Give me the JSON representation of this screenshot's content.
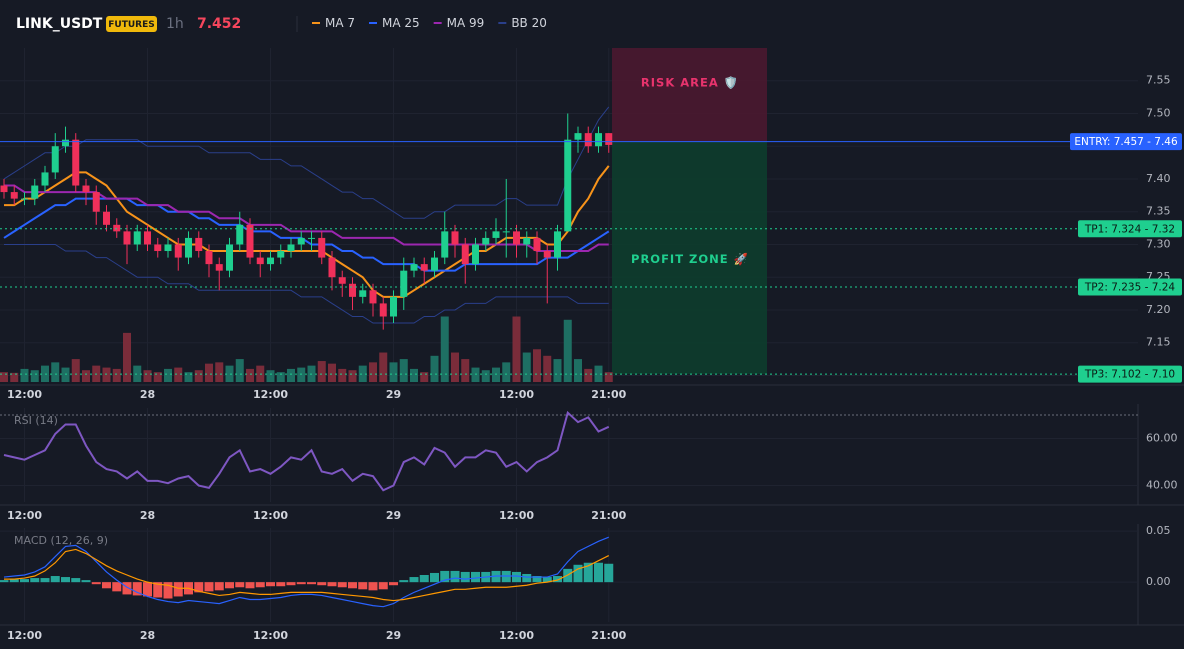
{
  "header": {
    "symbol": "LINK_USDT",
    "badge": "FUTURES",
    "interval": "1h",
    "price": 7.452
  },
  "chart_data": [
    {
      "type": "candlestick",
      "ylim": [
        7.09,
        7.6
      ],
      "yticks": [
        7.55,
        {
          "value": 7.5,
          "label": "7.50"
        },
        7.45,
        {
          "value": 7.4,
          "label": "7.40"
        },
        7.35,
        {
          "value": 7.3,
          "label": "7.30"
        },
        7.25,
        {
          "value": 7.2,
          "label": "7.20"
        },
        7.15,
        {
          "value": 7.1,
          "label": "7.10"
        }
      ],
      "xticks": [
        {
          "value": 2,
          "label": "12:00"
        },
        {
          "value": 14,
          "label": "28"
        },
        {
          "value": 26,
          "label": "12:00"
        },
        {
          "value": 38,
          "label": "29"
        },
        {
          "value": 50,
          "label": "12:00"
        },
        {
          "value": 59,
          "label": "21:00"
        }
      ],
      "grid": true,
      "up_color": "#1fcf8f",
      "down_color": "#f0305a",
      "open": [
        7.39,
        7.38,
        7.37,
        7.37,
        7.39,
        7.41,
        7.45,
        7.46,
        7.39,
        7.38,
        7.35,
        7.33,
        7.32,
        7.3,
        7.32,
        7.3,
        7.29,
        7.3,
        7.28,
        7.31,
        7.29,
        7.27,
        7.26,
        7.3,
        7.33,
        7.28,
        7.27,
        7.28,
        7.29,
        7.3,
        7.31,
        7.31,
        7.28,
        7.25,
        7.24,
        7.22,
        7.23,
        7.21,
        7.19,
        7.22,
        7.26,
        7.27,
        7.26,
        7.28,
        7.32,
        7.3,
        7.27,
        7.3,
        7.31,
        7.32,
        7.32,
        7.3,
        7.31,
        7.29,
        7.28,
        7.32,
        7.46,
        7.47,
        7.45,
        7.47
      ],
      "high": [
        7.4,
        7.39,
        7.38,
        7.4,
        7.42,
        7.47,
        7.48,
        7.47,
        7.4,
        7.39,
        7.36,
        7.34,
        7.33,
        7.33,
        7.33,
        7.31,
        7.31,
        7.31,
        7.32,
        7.32,
        7.3,
        7.28,
        7.31,
        7.35,
        7.34,
        7.29,
        7.29,
        7.3,
        7.31,
        7.32,
        7.32,
        7.32,
        7.29,
        7.26,
        7.25,
        7.24,
        7.24,
        7.22,
        7.23,
        7.28,
        7.28,
        7.28,
        7.29,
        7.35,
        7.33,
        7.31,
        7.31,
        7.32,
        7.34,
        7.4,
        7.33,
        7.32,
        7.32,
        7.3,
        7.33,
        7.5,
        7.48,
        7.48,
        7.48,
        7.47
      ],
      "low": [
        7.37,
        7.36,
        7.36,
        7.36,
        7.38,
        7.4,
        7.44,
        7.38,
        7.36,
        7.33,
        7.32,
        7.31,
        7.27,
        7.29,
        7.29,
        7.28,
        7.28,
        7.26,
        7.27,
        7.28,
        7.25,
        7.23,
        7.25,
        7.29,
        7.27,
        7.25,
        7.26,
        7.27,
        7.28,
        7.29,
        7.29,
        7.27,
        7.23,
        7.22,
        7.2,
        7.21,
        7.19,
        7.17,
        7.18,
        7.2,
        7.25,
        7.24,
        7.25,
        7.27,
        7.28,
        7.24,
        7.26,
        7.29,
        7.3,
        7.28,
        7.28,
        7.28,
        7.27,
        7.21,
        7.26,
        7.32,
        7.44,
        7.44,
        7.44,
        7.44
      ],
      "close": [
        7.38,
        7.37,
        7.37,
        7.39,
        7.41,
        7.45,
        7.46,
        7.39,
        7.38,
        7.35,
        7.33,
        7.32,
        7.3,
        7.32,
        7.3,
        7.29,
        7.3,
        7.28,
        7.31,
        7.29,
        7.27,
        7.26,
        7.3,
        7.33,
        7.28,
        7.27,
        7.28,
        7.29,
        7.3,
        7.31,
        7.31,
        7.28,
        7.25,
        7.24,
        7.22,
        7.23,
        7.21,
        7.19,
        7.22,
        7.26,
        7.27,
        7.26,
        7.28,
        7.32,
        7.3,
        7.27,
        7.3,
        7.31,
        7.32,
        7.32,
        7.3,
        7.31,
        7.29,
        7.28,
        7.32,
        7.46,
        7.47,
        7.45,
        7.47,
        7.452
      ],
      "volume": [
        15,
        14,
        20,
        18,
        25,
        30,
        22,
        35,
        18,
        25,
        22,
        20,
        75,
        25,
        18,
        15,
        20,
        22,
        15,
        18,
        28,
        30,
        25,
        35,
        20,
        25,
        18,
        15,
        20,
        22,
        25,
        32,
        28,
        20,
        18,
        25,
        30,
        45,
        30,
        35,
        20,
        15,
        40,
        100,
        45,
        35,
        22,
        18,
        22,
        30,
        100,
        45,
        50,
        40,
        35,
        95,
        35,
        20,
        25,
        15
      ],
      "y2lim": [
        0,
        510
      ],
      "volume_up_color": "#1e6f63",
      "volume_down_color": "#7a2c3a",
      "series": [
        {
          "name": "MA 7",
          "color": "#f7931a",
          "values": [
            7.36,
            7.36,
            7.37,
            7.37,
            7.38,
            7.39,
            7.4,
            7.41,
            7.41,
            7.4,
            7.39,
            7.37,
            7.35,
            7.34,
            7.33,
            7.32,
            7.31,
            7.3,
            7.3,
            7.3,
            7.29,
            7.29,
            7.29,
            7.29,
            7.29,
            7.29,
            7.29,
            7.29,
            7.29,
            7.29,
            7.29,
            7.29,
            7.28,
            7.27,
            7.26,
            7.25,
            7.23,
            7.22,
            7.22,
            7.22,
            7.23,
            7.24,
            7.25,
            7.26,
            7.27,
            7.28,
            7.29,
            7.29,
            7.3,
            7.31,
            7.31,
            7.31,
            7.31,
            7.3,
            7.3,
            7.32,
            7.35,
            7.37,
            7.4,
            7.42
          ]
        },
        {
          "name": "MA 25",
          "color": "#2962ff",
          "values": [
            7.31,
            7.32,
            7.33,
            7.34,
            7.35,
            7.36,
            7.36,
            7.37,
            7.37,
            7.37,
            7.37,
            7.37,
            7.37,
            7.36,
            7.36,
            7.36,
            7.35,
            7.35,
            7.35,
            7.34,
            7.34,
            7.33,
            7.33,
            7.33,
            7.32,
            7.32,
            7.32,
            7.31,
            7.31,
            7.31,
            7.3,
            7.3,
            7.3,
            7.29,
            7.29,
            7.28,
            7.28,
            7.27,
            7.27,
            7.27,
            7.27,
            7.26,
            7.26,
            7.26,
            7.26,
            7.27,
            7.27,
            7.27,
            7.27,
            7.27,
            7.27,
            7.27,
            7.27,
            7.28,
            7.28,
            7.28,
            7.29,
            7.3,
            7.31,
            7.32
          ]
        },
        {
          "name": "MA 99",
          "color": "#9c27b0",
          "values": [
            7.39,
            7.39,
            7.38,
            7.38,
            7.38,
            7.38,
            7.38,
            7.38,
            7.38,
            7.38,
            7.37,
            7.37,
            7.37,
            7.37,
            7.36,
            7.36,
            7.36,
            7.35,
            7.35,
            7.35,
            7.35,
            7.34,
            7.34,
            7.34,
            7.33,
            7.33,
            7.33,
            7.33,
            7.32,
            7.32,
            7.32,
            7.32,
            7.32,
            7.31,
            7.31,
            7.31,
            7.31,
            7.31,
            7.31,
            7.3,
            7.3,
            7.3,
            7.3,
            7.3,
            7.3,
            7.3,
            7.3,
            7.3,
            7.3,
            7.3,
            7.3,
            7.3,
            7.29,
            7.29,
            7.29,
            7.29,
            7.29,
            7.29,
            7.3,
            7.3
          ]
        },
        {
          "name": "BB 20",
          "color": "#2a3f8a",
          "values": [
            7.4,
            7.41,
            7.42,
            7.43,
            7.44,
            7.44,
            7.45,
            7.45,
            7.46,
            7.46,
            7.46,
            7.46,
            7.46,
            7.46,
            7.45,
            7.45,
            7.45,
            7.45,
            7.45,
            7.45,
            7.44,
            7.44,
            7.44,
            7.44,
            7.44,
            7.43,
            7.43,
            7.43,
            7.42,
            7.42,
            7.41,
            7.4,
            7.39,
            7.38,
            7.38,
            7.37,
            7.37,
            7.36,
            7.35,
            7.34,
            7.34,
            7.34,
            7.35,
            7.35,
            7.36,
            7.36,
            7.36,
            7.36,
            7.36,
            7.37,
            7.37,
            7.36,
            7.36,
            7.36,
            7.36,
            7.4,
            7.43,
            7.46,
            7.49,
            7.51
          ],
          "lower": [
            7.3,
            7.3,
            7.3,
            7.3,
            7.3,
            7.3,
            7.29,
            7.29,
            7.29,
            7.28,
            7.28,
            7.27,
            7.26,
            7.25,
            7.25,
            7.25,
            7.24,
            7.24,
            7.24,
            7.23,
            7.23,
            7.23,
            7.23,
            7.23,
            7.23,
            7.23,
            7.23,
            7.23,
            7.23,
            7.22,
            7.22,
            7.22,
            7.21,
            7.2,
            7.19,
            7.19,
            7.18,
            7.18,
            7.18,
            7.18,
            7.18,
            7.19,
            7.19,
            7.2,
            7.2,
            7.21,
            7.21,
            7.21,
            7.22,
            7.22,
            7.22,
            7.22,
            7.22,
            7.22,
            7.22,
            7.22,
            7.21,
            7.21,
            7.21,
            7.21
          ]
        }
      ],
      "levels": [
        {
          "value": 7.457,
          "label": "ENTRY: 7.457 - 7.46",
          "color": "#2962ff",
          "style": "solid"
        },
        {
          "value": 7.324,
          "label": "TP1: 7.324 - 7.32",
          "color": "#1fcf8f",
          "style": "dotted"
        },
        {
          "value": 7.235,
          "label": "TP2: 7.235 - 7.24",
          "color": "#1fcf8f",
          "style": "dotted"
        },
        {
          "value": 7.102,
          "label": "TP3: 7.102 - 7.10",
          "color": "#1fcf8f",
          "style": "dotted"
        }
      ],
      "zones": [
        {
          "label": "RISK AREA 🛡️",
          "from": 7.457,
          "to": 7.6,
          "color": "#4a1830",
          "text_color": "#e8336d"
        },
        {
          "label": "PROFIT ZONE 🚀",
          "from": 7.102,
          "to": 7.457,
          "color": "#0d3d2e",
          "text_color": "#1fcf8f"
        }
      ]
    },
    {
      "type": "line",
      "title": "RSI (14)",
      "ylim": [
        33,
        73
      ],
      "yticks": [
        {
          "value": 60,
          "label": "60.00"
        },
        {
          "value": 40,
          "label": "40.00"
        }
      ],
      "xticks": [
        {
          "value": 2,
          "label": "12:00"
        },
        {
          "value": 14,
          "label": "28"
        },
        {
          "value": 26,
          "label": "12:00"
        },
        {
          "value": 38,
          "label": "29"
        },
        {
          "value": 50,
          "label": "12:00"
        },
        {
          "value": 59,
          "label": "21:00"
        }
      ],
      "hline": 70,
      "series": [
        {
          "color": "#7e57c2",
          "values": [
            53,
            52,
            51,
            53,
            55,
            62,
            66,
            66,
            57,
            50,
            47,
            46,
            43,
            46,
            42,
            42,
            41,
            43,
            44,
            40,
            39,
            45,
            52,
            55,
            46,
            47,
            45,
            48,
            52,
            51,
            55,
            46,
            45,
            47,
            42,
            45,
            44,
            38,
            40,
            50,
            52,
            49,
            56,
            54,
            48,
            52,
            52,
            55,
            54,
            48,
            50,
            46,
            50,
            52,
            55,
            71,
            67,
            69,
            63,
            65
          ]
        }
      ]
    },
    {
      "type": "macd",
      "title": "MACD (12, 26, 9)",
      "ylim": [
        -0.039,
        0.053
      ],
      "yticks": [
        0.05,
        {
          "value": 0,
          "label": "0.00"
        }
      ],
      "xticks": [
        {
          "value": 2,
          "label": "12:00"
        },
        {
          "value": 14,
          "label": "28"
        },
        {
          "value": 26,
          "label": "12:00"
        },
        {
          "value": 38,
          "label": "29"
        },
        {
          "value": 50,
          "label": "12:00"
        },
        {
          "value": 59,
          "label": "21:00"
        }
      ],
      "hist_up_color": "#26a69a",
      "hist_down_color": "#ef5350",
      "histogram": [
        0.002,
        0.003,
        0.003,
        0.004,
        0.004,
        0.006,
        0.005,
        0.004,
        0.002,
        -0.002,
        -0.006,
        -0.009,
        -0.012,
        -0.013,
        -0.014,
        -0.015,
        -0.016,
        -0.014,
        -0.012,
        -0.01,
        -0.009,
        -0.008,
        -0.006,
        -0.005,
        -0.006,
        -0.005,
        -0.004,
        -0.004,
        -0.003,
        -0.002,
        -0.002,
        -0.003,
        -0.004,
        -0.005,
        -0.006,
        -0.007,
        -0.008,
        -0.007,
        -0.003,
        0.002,
        0.005,
        0.007,
        0.009,
        0.011,
        0.011,
        0.01,
        0.01,
        0.01,
        0.011,
        0.011,
        0.01,
        0.008,
        0.006,
        0.005,
        0.006,
        0.013,
        0.017,
        0.019,
        0.019,
        0.018
      ],
      "series": [
        {
          "color": "#2962ff",
          "values": [
            0.005,
            0.006,
            0.007,
            0.01,
            0.015,
            0.025,
            0.035,
            0.036,
            0.03,
            0.02,
            0.01,
            0.002,
            -0.005,
            -0.01,
            -0.014,
            -0.017,
            -0.019,
            -0.02,
            -0.018,
            -0.019,
            -0.02,
            -0.021,
            -0.018,
            -0.015,
            -0.017,
            -0.017,
            -0.016,
            -0.015,
            -0.013,
            -0.012,
            -0.012,
            -0.013,
            -0.015,
            -0.017,
            -0.019,
            -0.021,
            -0.023,
            -0.024,
            -0.021,
            -0.015,
            -0.01,
            -0.006,
            -0.002,
            0.002,
            0.004,
            0.003,
            0.004,
            0.005,
            0.006,
            0.006,
            0.006,
            0.005,
            0.005,
            0.005,
            0.008,
            0.02,
            0.03,
            0.035,
            0.04,
            0.044
          ]
        },
        {
          "color": "#ff9800",
          "values": [
            0.003,
            0.003,
            0.004,
            0.006,
            0.011,
            0.019,
            0.03,
            0.032,
            0.028,
            0.022,
            0.016,
            0.011,
            0.007,
            0.003,
            0.0,
            -0.002,
            -0.003,
            -0.006,
            -0.006,
            -0.009,
            -0.011,
            -0.013,
            -0.012,
            -0.01,
            -0.011,
            -0.012,
            -0.012,
            -0.011,
            -0.01,
            -0.01,
            -0.01,
            -0.01,
            -0.011,
            -0.012,
            -0.013,
            -0.014,
            -0.015,
            -0.017,
            -0.018,
            -0.017,
            -0.015,
            -0.013,
            -0.011,
            -0.009,
            -0.007,
            -0.007,
            -0.006,
            -0.005,
            -0.005,
            -0.005,
            -0.004,
            -0.003,
            -0.001,
            0.0,
            0.002,
            0.007,
            0.013,
            0.016,
            0.021,
            0.026
          ]
        }
      ]
    }
  ]
}
